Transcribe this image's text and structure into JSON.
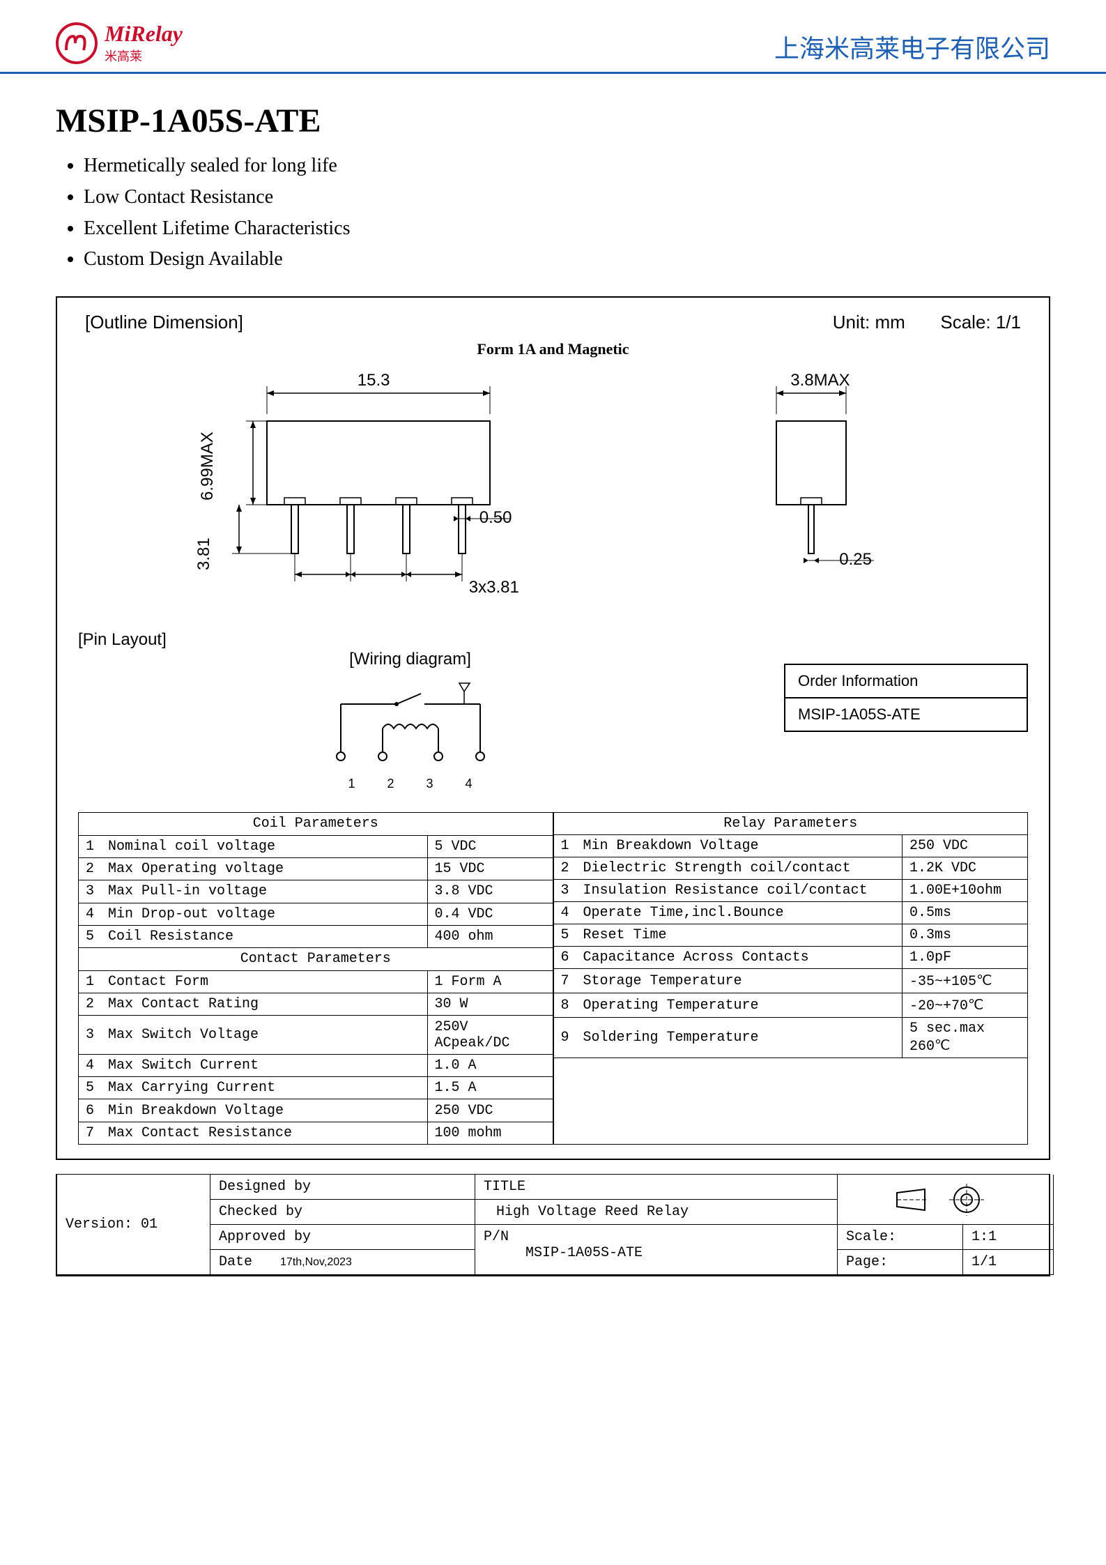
{
  "header": {
    "logo_main": "MiRelay",
    "logo_sub": "米高莱",
    "company": "上海米高莱电子有限公司"
  },
  "part": {
    "title": "MSIP-1A05S-ATE",
    "features": [
      "Hermetically sealed for long life",
      "Low Contact Resistance",
      "Excellent Lifetime Characteristics",
      "Custom Design Available"
    ]
  },
  "outline": {
    "label": "[Outline Dimension]",
    "unit_label": "Unit:  mm",
    "scale_label": "Scale:  1/1",
    "form_label": "Form 1A and Magnetic",
    "dims": {
      "width": "15.3",
      "height": "6.99MAX",
      "pin_len": "3.81",
      "pin_w": "0.50",
      "pitch": "3x3.81",
      "side_w": "3.8MAX",
      "side_pin": "0.25"
    }
  },
  "pin_layout_label": "[Pin Layout]",
  "wiring_label": "[Wiring diagram]",
  "wiring_pins": [
    "1",
    "2",
    "3",
    "4"
  ],
  "order": {
    "heading": "Order Information",
    "code": "MSIP-1A05S-ATE"
  },
  "coil_head": "Coil    Parameters",
  "relay_head": "Relay Parameters",
  "contact_head": "Contact Parameters",
  "coil_params": [
    {
      "n": "1",
      "k": "Nominal coil  voltage",
      "v": "5 VDC"
    },
    {
      "n": "2",
      "k": "Max Operating voltage",
      "v": "15 VDC"
    },
    {
      "n": "3",
      "k": "Max  Pull-in  voltage",
      "v": "3.8  VDC"
    },
    {
      "n": "4",
      "k": "Min  Drop-out voltage",
      "v": "0.4  VDC"
    },
    {
      "n": "5",
      "k": "Coil Resistance",
      "v": "400 ohm"
    }
  ],
  "contact_params": [
    {
      "n": "1",
      "k": "Contact Form",
      "v": "1 Form A"
    },
    {
      "n": "2",
      "k": "Max Contact Rating",
      "v": "30 W"
    },
    {
      "n": "3",
      "k": "Max Switch Voltage",
      "v": "250V ACpeak/DC"
    },
    {
      "n": "4",
      "k": "Max Switch Current",
      "v": "1.0 A"
    },
    {
      "n": "5",
      "k": "Max Carrying Current",
      "v": "1.5 A"
    },
    {
      "n": "6",
      "k": "Min Breakdown Voltage",
      "v": "250 VDC"
    },
    {
      "n": "7",
      "k": "Max Contact Resistance",
      "v": "100 mohm"
    }
  ],
  "relay_params": [
    {
      "n": "1",
      "k": "Min Breakdown Voltage",
      "v": "250 VDC"
    },
    {
      "n": "2",
      "k": "Dielectric Strength coil/contact",
      "v": "1.2K VDC"
    },
    {
      "n": "3",
      "k": "Insulation Resistance coil/contact",
      "v": "1.00E+10ohm"
    },
    {
      "n": "4",
      "k": "Operate Time,incl.Bounce",
      "v": "0.5ms"
    },
    {
      "n": "5",
      "k": "Reset Time",
      "v": "0.3ms"
    },
    {
      "n": "6",
      "k": "Capacitance  Across Contacts",
      "v": "1.0pF"
    },
    {
      "n": "7",
      "k": "Storage   Temperature",
      "v": "-35~+105℃"
    },
    {
      "n": "8",
      "k": "Operating Temperature",
      "v": "-20~+70℃"
    },
    {
      "n": "9",
      "k": "Soldering Temperature",
      "v": "5 sec.max 260℃"
    }
  ],
  "title_block": {
    "version": "Version: 01",
    "designed": "Designed by",
    "checked": "Checked  by",
    "approved": "Approved by",
    "date_label": "Date",
    "date_value": "17th,Nov,2023",
    "title_label": "TITLE",
    "title_value": "High Voltage Reed Relay",
    "pn_label": "P/N",
    "pn_value": "MSIP-1A05S-ATE",
    "scale_label": "Scale:",
    "scale_value": "1:1",
    "page_label": "Page:",
    "page_value": "1/1"
  },
  "colors": {
    "brand": "#c8102e",
    "blue": "#1e5fb3",
    "black": "#000000"
  }
}
